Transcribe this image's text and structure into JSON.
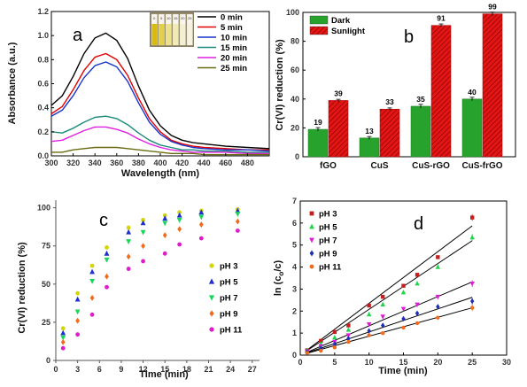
{
  "chart_data": [
    {
      "panel": "a",
      "type": "line",
      "xlabel": "Wavelength (nm)",
      "ylabel": "Absorbance (a.u.)",
      "xlim": [
        300,
        500
      ],
      "ylim": [
        0,
        1.2
      ],
      "xticks": [
        "300",
        "320",
        "340",
        "360",
        "380",
        "400",
        "420",
        "440",
        "460",
        "480"
      ],
      "yticks": [
        "0.0",
        "0.2",
        "0.4",
        "0.6",
        "0.8",
        "1.0",
        "1.2"
      ],
      "legend_position": "top-right",
      "series": [
        {
          "name": "0 min",
          "color": "#000000",
          "x": [
            300,
            310,
            320,
            330,
            340,
            350,
            360,
            370,
            380,
            390,
            400,
            410,
            420,
            430,
            440,
            460,
            480,
            500
          ],
          "values": [
            0.42,
            0.5,
            0.66,
            0.85,
            0.98,
            1.02,
            0.96,
            0.81,
            0.58,
            0.38,
            0.25,
            0.17,
            0.13,
            0.11,
            0.1,
            0.08,
            0.07,
            0.06
          ]
        },
        {
          "name": "5 min",
          "color": "#e00000",
          "x": [
            300,
            310,
            320,
            330,
            340,
            350,
            360,
            370,
            380,
            390,
            400,
            410,
            420,
            430,
            440,
            460,
            480,
            500
          ],
          "values": [
            0.35,
            0.41,
            0.55,
            0.71,
            0.82,
            0.85,
            0.8,
            0.67,
            0.48,
            0.31,
            0.2,
            0.13,
            0.1,
            0.08,
            0.07,
            0.06,
            0.05,
            0.05
          ]
        },
        {
          "name": "10 min",
          "color": "#1a33cc",
          "x": [
            300,
            310,
            320,
            330,
            340,
            350,
            360,
            370,
            380,
            390,
            400,
            410,
            420,
            430,
            440,
            460,
            480,
            500
          ],
          "values": [
            0.33,
            0.38,
            0.5,
            0.65,
            0.75,
            0.78,
            0.74,
            0.62,
            0.44,
            0.28,
            0.18,
            0.12,
            0.09,
            0.07,
            0.06,
            0.05,
            0.05,
            0.04
          ]
        },
        {
          "name": "15 min",
          "color": "#1a8a7a",
          "x": [
            300,
            310,
            320,
            330,
            340,
            350,
            360,
            370,
            380,
            390,
            400,
            410,
            420,
            430,
            440,
            460,
            480,
            500
          ],
          "values": [
            0.2,
            0.19,
            0.23,
            0.28,
            0.32,
            0.33,
            0.31,
            0.26,
            0.19,
            0.13,
            0.09,
            0.07,
            0.05,
            0.05,
            0.04,
            0.04,
            0.03,
            0.03
          ]
        },
        {
          "name": "20 min",
          "color": "#e020e0",
          "x": [
            300,
            310,
            320,
            330,
            340,
            350,
            360,
            370,
            380,
            390,
            400,
            410,
            420,
            430,
            440,
            460,
            480,
            500
          ],
          "values": [
            0.12,
            0.13,
            0.17,
            0.21,
            0.24,
            0.24,
            0.22,
            0.19,
            0.14,
            0.1,
            0.07,
            0.05,
            0.04,
            0.03,
            0.03,
            0.03,
            0.02,
            0.02
          ]
        },
        {
          "name": "25 min",
          "color": "#6b6b12",
          "x": [
            300,
            310,
            320,
            330,
            340,
            350,
            360,
            370,
            380,
            390,
            400,
            410,
            420,
            430,
            440,
            460,
            480,
            500
          ],
          "values": [
            0.03,
            0.03,
            0.05,
            0.06,
            0.07,
            0.07,
            0.07,
            0.06,
            0.05,
            0.04,
            0.03,
            0.02,
            0.02,
            0.02,
            0.01,
            0.01,
            0.01,
            0.01
          ]
        }
      ],
      "inset": {
        "vial_labels": [
          "0",
          "5",
          "10",
          "15",
          "20",
          "25"
        ],
        "vial_colors": [
          "#d8bb10",
          "#e3cf4e",
          "#ece08a",
          "#f0eab5",
          "#f3efd4",
          "#f5f2e2"
        ]
      }
    },
    {
      "panel": "b",
      "type": "bar",
      "ylabel": "Cr(VI) reduction (%)",
      "ylim": [
        0,
        100
      ],
      "yticks": [
        "0",
        "20",
        "40",
        "60",
        "80",
        "100"
      ],
      "categories": [
        "fGO",
        "CuS",
        "CuS-rGO",
        "CuS-frGO"
      ],
      "legend_position": "top-left",
      "series": [
        {
          "name": "Dark",
          "color": "#27a22c",
          "values": [
            19,
            13,
            35,
            40
          ],
          "labels": [
            "19",
            "13",
            "35",
            "40"
          ],
          "errors": [
            1.2,
            1.0,
            1.3,
            1.2
          ]
        },
        {
          "name": "Sunlight",
          "color": "#e31515",
          "values": [
            39,
            33,
            91,
            99
          ],
          "labels": [
            "39",
            "33",
            "91",
            "99"
          ],
          "errors": [
            0.8,
            0.8,
            1.0,
            1.2
          ]
        }
      ]
    },
    {
      "panel": "c",
      "type": "scatter",
      "xlabel": "Time (min)",
      "ylabel": "Cr(VI) reduction (%)",
      "xlim": [
        0,
        28
      ],
      "ylim": [
        0,
        105
      ],
      "xticks": [
        "0",
        "3",
        "6",
        "9",
        "12",
        "15",
        "18",
        "21",
        "24",
        "27"
      ],
      "yticks": [
        "0",
        "25",
        "50",
        "75",
        "100"
      ],
      "legend_position": "bottom-right",
      "x": [
        1,
        3,
        5,
        7,
        10,
        12,
        15,
        17,
        20,
        25
      ],
      "series": [
        {
          "name": "pH 3",
          "color": "#d4d40a",
          "marker": "circle",
          "values": [
            21,
            44,
            62,
            74,
            87,
            92,
            95,
            97,
            98,
            99
          ]
        },
        {
          "name": "pH 5",
          "color": "#1d2fd1",
          "marker": "triangle-up",
          "values": [
            18,
            40,
            58,
            70,
            84,
            90,
            93,
            95,
            97,
            98
          ]
        },
        {
          "name": "pH 7",
          "color": "#18d65a",
          "marker": "triangle-down",
          "values": [
            15,
            32,
            52,
            66,
            78,
            84,
            90,
            92,
            94,
            96
          ]
        },
        {
          "name": "pH 9",
          "color": "#f26b1c",
          "marker": "diamond",
          "values": [
            12,
            26,
            41,
            55,
            68,
            75,
            82,
            86,
            89,
            91
          ]
        },
        {
          "name": "pH 11",
          "color": "#e01bc8",
          "marker": "circle",
          "values": [
            8,
            17,
            30,
            48,
            60,
            65,
            70,
            76,
            80,
            85
          ]
        }
      ]
    },
    {
      "panel": "d",
      "type": "scatter",
      "xlabel": "Time (min)",
      "ylabel": "ln (c0/c)",
      "ylabel_main": "ln (c",
      "ylabel_sub": "o",
      "ylabel_end": "/c)",
      "xlim": [
        0,
        30
      ],
      "ylim": [
        0,
        7
      ],
      "xticks": [
        "0",
        "5",
        "10",
        "15",
        "20",
        "25",
        "30"
      ],
      "yticks": [
        "0",
        "1",
        "2",
        "3",
        "4",
        "5",
        "6",
        "7"
      ],
      "legend_position": "top-left",
      "x": [
        1,
        3,
        5,
        7,
        10,
        12,
        15,
        17,
        20,
        25
      ],
      "series": [
        {
          "name": "pH 3",
          "color": "#c41e1e",
          "marker": "square",
          "values": [
            0.22,
            0.65,
            1.05,
            1.35,
            2.25,
            2.65,
            3.15,
            3.65,
            4.45,
            6.25
          ],
          "slope": 0.235,
          "intercept": 0.0
        },
        {
          "name": "pH 5",
          "color": "#1fd64a",
          "marker": "triangle-up",
          "values": [
            0.2,
            0.5,
            0.8,
            1.15,
            1.85,
            2.3,
            2.85,
            3.25,
            4.0,
            5.35
          ],
          "slope": 0.208,
          "intercept": 0.0
        },
        {
          "name": "pH 7",
          "color": "#e01bd8",
          "marker": "triangle-down",
          "values": [
            0.17,
            0.4,
            0.6,
            0.9,
            1.4,
            1.75,
            2.1,
            2.3,
            2.65,
            3.25
          ],
          "slope": 0.133,
          "intercept": 0.0
        },
        {
          "name": "pH 9",
          "color": "#1d2fb5",
          "marker": "diamond",
          "values": [
            0.13,
            0.3,
            0.5,
            0.75,
            1.1,
            1.35,
            1.65,
            1.9,
            2.2,
            2.45
          ],
          "slope": 0.105,
          "intercept": 0.0
        },
        {
          "name": "pH 11",
          "color": "#f26b1c",
          "marker": "circle",
          "values": [
            0.1,
            0.2,
            0.35,
            0.6,
            0.9,
            1.0,
            1.25,
            1.45,
            1.7,
            2.15
          ],
          "slope": 0.086,
          "intercept": 0.0
        }
      ]
    }
  ]
}
